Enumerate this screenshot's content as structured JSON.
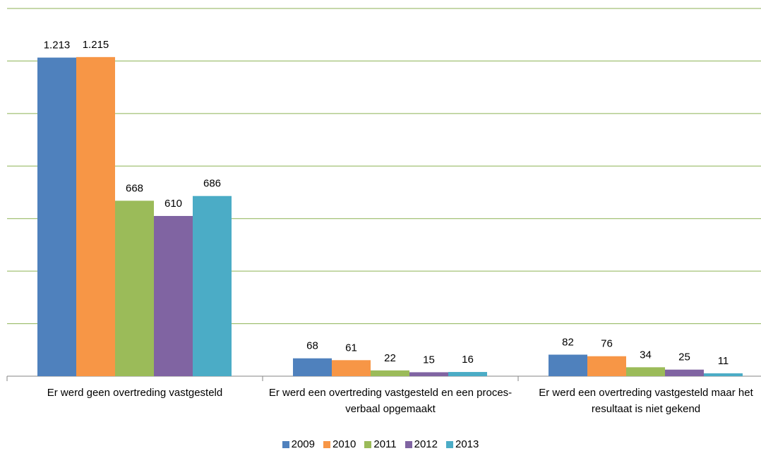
{
  "chart_data": {
    "type": "bar",
    "categories": [
      "Er werd geen overtreding vastgesteld",
      "Er werd een overtreding vastgesteld en een proces-verbaal opgemaakt",
      "Er werd een overtreding vastgesteld maar het resultaat is niet gekend"
    ],
    "series": [
      {
        "name": "2009",
        "color": "#4f81bd",
        "values": [
          1213,
          68,
          82
        ],
        "value_labels": [
          "1.213",
          "68",
          "82"
        ]
      },
      {
        "name": "2010",
        "color": "#f79646",
        "values": [
          1215,
          61,
          76
        ],
        "value_labels": [
          "1.215",
          "61",
          "76"
        ]
      },
      {
        "name": "2011",
        "color": "#9bbb59",
        "values": [
          668,
          22,
          34
        ],
        "value_labels": [
          "668",
          "22",
          "34"
        ]
      },
      {
        "name": "2012",
        "color": "#8064a2",
        "values": [
          610,
          15,
          25
        ],
        "value_labels": [
          "610",
          "15",
          "25"
        ]
      },
      {
        "name": "2013",
        "color": "#4bacc6",
        "values": [
          686,
          16,
          11
        ],
        "value_labels": [
          "686",
          "16",
          "11"
        ]
      }
    ],
    "ylim": [
      0,
      1400
    ],
    "yticks": [
      0,
      200,
      400,
      600,
      800,
      1000,
      1200,
      1400
    ],
    "grid": true,
    "legend": "bottom"
  }
}
